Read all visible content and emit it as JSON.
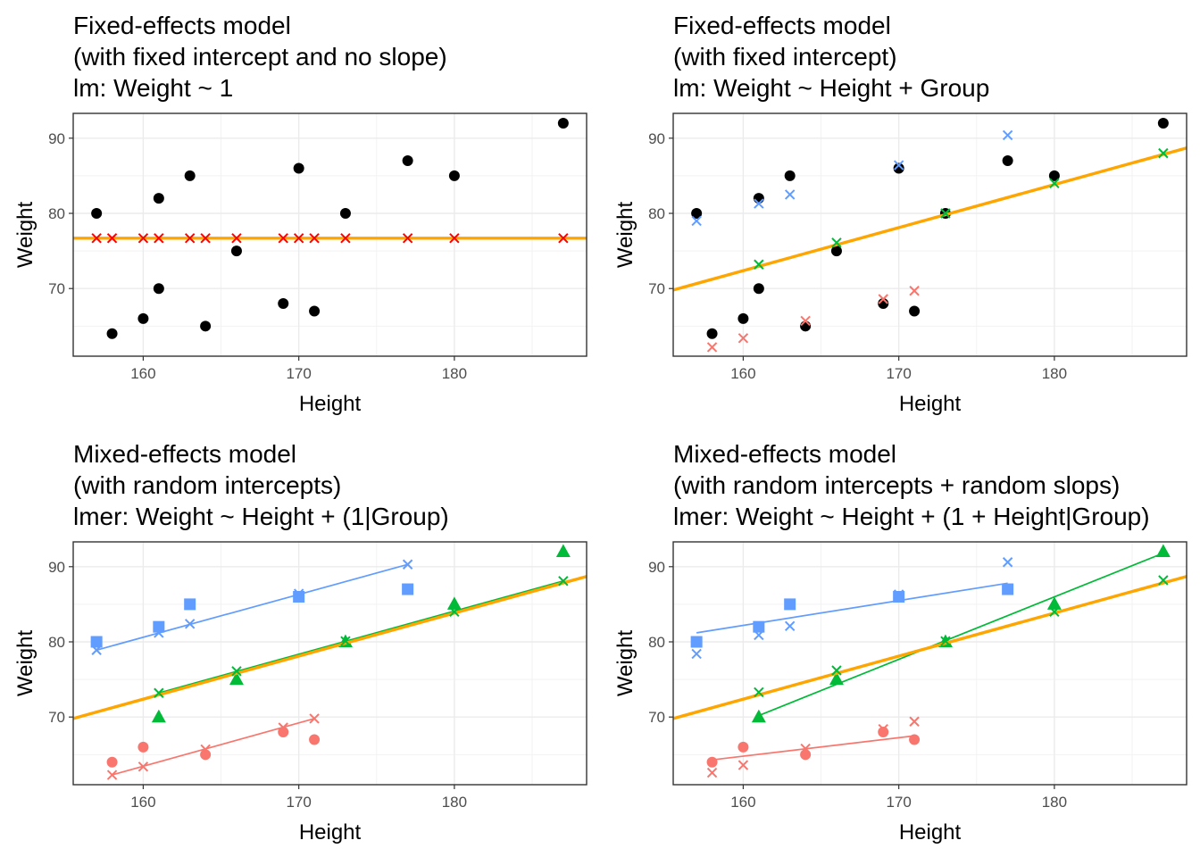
{
  "chart_data": [
    {
      "type": "scatter",
      "title_lines": [
        "Fixed-effects model",
        "(with fixed intercept and no slope)",
        "lm: Weight ~ 1"
      ],
      "xlabel": "Height",
      "ylabel": "Weight",
      "xlim": [
        155.5,
        188.5
      ],
      "ylim": [
        61.0,
        93.3
      ],
      "xticks": [
        160,
        170,
        180
      ],
      "yticks": [
        70,
        80,
        90
      ],
      "grid": true,
      "legend": "none",
      "points": [
        {
          "x": 157,
          "y": 80,
          "color": "#000000",
          "shape": "circle"
        },
        {
          "x": 158,
          "y": 64,
          "color": "#000000",
          "shape": "circle"
        },
        {
          "x": 160,
          "y": 66,
          "color": "#000000",
          "shape": "circle"
        },
        {
          "x": 161,
          "y": 82,
          "color": "#000000",
          "shape": "circle"
        },
        {
          "x": 161,
          "y": 70,
          "color": "#000000",
          "shape": "circle"
        },
        {
          "x": 163,
          "y": 85,
          "color": "#000000",
          "shape": "circle"
        },
        {
          "x": 164,
          "y": 65,
          "color": "#000000",
          "shape": "circle"
        },
        {
          "x": 166,
          "y": 75,
          "color": "#000000",
          "shape": "circle"
        },
        {
          "x": 169,
          "y": 68,
          "color": "#000000",
          "shape": "circle"
        },
        {
          "x": 170,
          "y": 86,
          "color": "#000000",
          "shape": "circle"
        },
        {
          "x": 171,
          "y": 67,
          "color": "#000000",
          "shape": "circle"
        },
        {
          "x": 173,
          "y": 80,
          "color": "#000000",
          "shape": "circle"
        },
        {
          "x": 177,
          "y": 87,
          "color": "#000000",
          "shape": "circle"
        },
        {
          "x": 180,
          "y": 85,
          "color": "#000000",
          "shape": "circle"
        },
        {
          "x": 187,
          "y": 92,
          "color": "#000000",
          "shape": "circle"
        }
      ],
      "fitted": [
        {
          "x": 157,
          "y": 76.7,
          "color": "#ff0000"
        },
        {
          "x": 158,
          "y": 76.7,
          "color": "#ff0000"
        },
        {
          "x": 160,
          "y": 76.7,
          "color": "#ff0000"
        },
        {
          "x": 161,
          "y": 76.7,
          "color": "#ff0000"
        },
        {
          "x": 163,
          "y": 76.7,
          "color": "#ff0000"
        },
        {
          "x": 164,
          "y": 76.7,
          "color": "#ff0000"
        },
        {
          "x": 166,
          "y": 76.7,
          "color": "#ff0000"
        },
        {
          "x": 169,
          "y": 76.7,
          "color": "#ff0000"
        },
        {
          "x": 170,
          "y": 76.7,
          "color": "#ff0000"
        },
        {
          "x": 171,
          "y": 76.7,
          "color": "#ff0000"
        },
        {
          "x": 173,
          "y": 76.7,
          "color": "#ff0000"
        },
        {
          "x": 177,
          "y": 76.7,
          "color": "#ff0000"
        },
        {
          "x": 180,
          "y": 76.7,
          "color": "#ff0000"
        },
        {
          "x": 187,
          "y": 76.7,
          "color": "#ff0000"
        }
      ],
      "lines": [
        {
          "points": [
            [
              155.5,
              76.7
            ],
            [
              188.5,
              76.7
            ]
          ],
          "color": "#ffa500",
          "width": "thick"
        }
      ]
    },
    {
      "type": "scatter",
      "title_lines": [
        "Fixed-effects model",
        "(with fixed intercept)",
        "lm: Weight ~ Height + Group"
      ],
      "xlabel": "Height",
      "ylabel": "Weight",
      "xlim": [
        155.5,
        188.5
      ],
      "ylim": [
        61.0,
        93.3
      ],
      "xticks": [
        160,
        170,
        180
      ],
      "yticks": [
        70,
        80,
        90
      ],
      "grid": true,
      "legend": "none",
      "points": [
        {
          "x": 157,
          "y": 80,
          "color": "#000000",
          "shape": "circle"
        },
        {
          "x": 158,
          "y": 64,
          "color": "#000000",
          "shape": "circle"
        },
        {
          "x": 160,
          "y": 66,
          "color": "#000000",
          "shape": "circle"
        },
        {
          "x": 161,
          "y": 82,
          "color": "#000000",
          "shape": "circle"
        },
        {
          "x": 161,
          "y": 70,
          "color": "#000000",
          "shape": "circle"
        },
        {
          "x": 163,
          "y": 85,
          "color": "#000000",
          "shape": "circle"
        },
        {
          "x": 164,
          "y": 65,
          "color": "#000000",
          "shape": "circle"
        },
        {
          "x": 166,
          "y": 75,
          "color": "#000000",
          "shape": "circle"
        },
        {
          "x": 169,
          "y": 68,
          "color": "#000000",
          "shape": "circle"
        },
        {
          "x": 170,
          "y": 86,
          "color": "#000000",
          "shape": "circle"
        },
        {
          "x": 171,
          "y": 67,
          "color": "#000000",
          "shape": "circle"
        },
        {
          "x": 173,
          "y": 80,
          "color": "#000000",
          "shape": "circle"
        },
        {
          "x": 177,
          "y": 87,
          "color": "#000000",
          "shape": "circle"
        },
        {
          "x": 180,
          "y": 85,
          "color": "#000000",
          "shape": "circle"
        },
        {
          "x": 187,
          "y": 92,
          "color": "#000000",
          "shape": "circle"
        }
      ],
      "fitted": [
        {
          "x": 157,
          "y": 79.0,
          "color": "#619cff"
        },
        {
          "x": 161,
          "y": 81.3,
          "color": "#619cff"
        },
        {
          "x": 163,
          "y": 82.5,
          "color": "#619cff"
        },
        {
          "x": 170,
          "y": 86.4,
          "color": "#619cff"
        },
        {
          "x": 177,
          "y": 90.4,
          "color": "#619cff"
        },
        {
          "x": 161,
          "y": 73.2,
          "color": "#00ba38"
        },
        {
          "x": 166,
          "y": 76.1,
          "color": "#00ba38"
        },
        {
          "x": 173,
          "y": 80.0,
          "color": "#00ba38"
        },
        {
          "x": 180,
          "y": 84.0,
          "color": "#00ba38"
        },
        {
          "x": 187,
          "y": 88.0,
          "color": "#00ba38"
        },
        {
          "x": 158,
          "y": 62.2,
          "color": "#f8766d"
        },
        {
          "x": 160,
          "y": 63.4,
          "color": "#f8766d"
        },
        {
          "x": 164,
          "y": 65.7,
          "color": "#f8766d"
        },
        {
          "x": 169,
          "y": 68.6,
          "color": "#f8766d"
        },
        {
          "x": 171,
          "y": 69.7,
          "color": "#f8766d"
        }
      ],
      "lines": [
        {
          "points": [
            [
              155.5,
              69.8
            ],
            [
              188.5,
              88.7
            ]
          ],
          "color": "#ffa500",
          "width": "thick"
        }
      ]
    },
    {
      "type": "scatter",
      "title_lines": [
        "Mixed-effects model",
        " (with random intercepts)",
        "lmer: Weight ~ Height + (1|Group)"
      ],
      "xlabel": "Height",
      "ylabel": "Weight",
      "xlim": [
        155.5,
        188.5
      ],
      "ylim": [
        61.0,
        93.3
      ],
      "xticks": [
        160,
        170,
        180
      ],
      "yticks": [
        70,
        80,
        90
      ],
      "grid": true,
      "legend": "none",
      "points": [
        {
          "x": 157,
          "y": 80,
          "color": "#619cff",
          "shape": "square"
        },
        {
          "x": 161,
          "y": 82,
          "color": "#619cff",
          "shape": "square"
        },
        {
          "x": 163,
          "y": 85,
          "color": "#619cff",
          "shape": "square"
        },
        {
          "x": 170,
          "y": 86,
          "color": "#619cff",
          "shape": "square"
        },
        {
          "x": 177,
          "y": 87,
          "color": "#619cff",
          "shape": "square"
        },
        {
          "x": 161,
          "y": 70,
          "color": "#00ba38",
          "shape": "triangle"
        },
        {
          "x": 166,
          "y": 75,
          "color": "#00ba38",
          "shape": "triangle"
        },
        {
          "x": 173,
          "y": 80,
          "color": "#00ba38",
          "shape": "triangle"
        },
        {
          "x": 180,
          "y": 85,
          "color": "#00ba38",
          "shape": "triangle"
        },
        {
          "x": 187,
          "y": 92,
          "color": "#00ba38",
          "shape": "triangle"
        },
        {
          "x": 158,
          "y": 64,
          "color": "#f8766d",
          "shape": "circle"
        },
        {
          "x": 160,
          "y": 66,
          "color": "#f8766d",
          "shape": "circle"
        },
        {
          "x": 164,
          "y": 65,
          "color": "#f8766d",
          "shape": "circle"
        },
        {
          "x": 169,
          "y": 68,
          "color": "#f8766d",
          "shape": "circle"
        },
        {
          "x": 171,
          "y": 67,
          "color": "#f8766d",
          "shape": "circle"
        }
      ],
      "fitted": [
        {
          "x": 157,
          "y": 78.9,
          "color": "#619cff"
        },
        {
          "x": 161,
          "y": 81.2,
          "color": "#619cff"
        },
        {
          "x": 163,
          "y": 82.4,
          "color": "#619cff"
        },
        {
          "x": 170,
          "y": 86.4,
          "color": "#619cff"
        },
        {
          "x": 177,
          "y": 90.3,
          "color": "#619cff"
        },
        {
          "x": 161,
          "y": 73.2,
          "color": "#00ba38"
        },
        {
          "x": 166,
          "y": 76.1,
          "color": "#00ba38"
        },
        {
          "x": 173,
          "y": 80.1,
          "color": "#00ba38"
        },
        {
          "x": 180,
          "y": 84.0,
          "color": "#00ba38"
        },
        {
          "x": 187,
          "y": 88.1,
          "color": "#00ba38"
        },
        {
          "x": 158,
          "y": 62.3,
          "color": "#f8766d"
        },
        {
          "x": 160,
          "y": 63.4,
          "color": "#f8766d"
        },
        {
          "x": 164,
          "y": 65.7,
          "color": "#f8766d"
        },
        {
          "x": 169,
          "y": 68.6,
          "color": "#f8766d"
        },
        {
          "x": 171,
          "y": 69.8,
          "color": "#f8766d"
        }
      ],
      "lines": [
        {
          "points": [
            [
              157,
              78.9
            ],
            [
              177,
              90.3
            ]
          ],
          "color": "#619cff",
          "width": "thin"
        },
        {
          "points": [
            [
              161,
              73.2
            ],
            [
              187,
              88.1
            ]
          ],
          "color": "#00ba38",
          "width": "thin"
        },
        {
          "points": [
            [
              158,
              62.3
            ],
            [
              171,
              69.8
            ]
          ],
          "color": "#f8766d",
          "width": "thin"
        },
        {
          "points": [
            [
              155.5,
              69.8
            ],
            [
              188.5,
              88.7
            ]
          ],
          "color": "#ffa500",
          "width": "thick"
        }
      ]
    },
    {
      "type": "scatter",
      "title_lines": [
        "Mixed-effects model",
        "(with random intercepts + random slops)",
        "lmer: Weight ~ Height + (1 + Height|Group)"
      ],
      "xlabel": "Height",
      "ylabel": "Weight",
      "xlim": [
        155.5,
        188.5
      ],
      "ylim": [
        61.0,
        93.3
      ],
      "xticks": [
        160,
        170,
        180
      ],
      "yticks": [
        70,
        80,
        90
      ],
      "grid": true,
      "legend": "none",
      "points": [
        {
          "x": 157,
          "y": 80,
          "color": "#619cff",
          "shape": "square"
        },
        {
          "x": 161,
          "y": 82,
          "color": "#619cff",
          "shape": "square"
        },
        {
          "x": 163,
          "y": 85,
          "color": "#619cff",
          "shape": "square"
        },
        {
          "x": 170,
          "y": 86,
          "color": "#619cff",
          "shape": "square"
        },
        {
          "x": 177,
          "y": 87,
          "color": "#619cff",
          "shape": "square"
        },
        {
          "x": 161,
          "y": 70,
          "color": "#00ba38",
          "shape": "triangle"
        },
        {
          "x": 166,
          "y": 75,
          "color": "#00ba38",
          "shape": "triangle"
        },
        {
          "x": 173,
          "y": 80,
          "color": "#00ba38",
          "shape": "triangle"
        },
        {
          "x": 180,
          "y": 85,
          "color": "#00ba38",
          "shape": "triangle"
        },
        {
          "x": 187,
          "y": 92,
          "color": "#00ba38",
          "shape": "triangle"
        },
        {
          "x": 158,
          "y": 64,
          "color": "#f8766d",
          "shape": "circle"
        },
        {
          "x": 160,
          "y": 66,
          "color": "#f8766d",
          "shape": "circle"
        },
        {
          "x": 164,
          "y": 65,
          "color": "#f8766d",
          "shape": "circle"
        },
        {
          "x": 169,
          "y": 68,
          "color": "#f8766d",
          "shape": "circle"
        },
        {
          "x": 171,
          "y": 67,
          "color": "#f8766d",
          "shape": "circle"
        }
      ],
      "fitted": [
        {
          "x": 157,
          "y": 78.4,
          "color": "#619cff"
        },
        {
          "x": 161,
          "y": 80.9,
          "color": "#619cff"
        },
        {
          "x": 163,
          "y": 82.1,
          "color": "#619cff"
        },
        {
          "x": 170,
          "y": 86.3,
          "color": "#619cff"
        },
        {
          "x": 177,
          "y": 90.6,
          "color": "#619cff"
        },
        {
          "x": 161,
          "y": 73.3,
          "color": "#00ba38"
        },
        {
          "x": 166,
          "y": 76.2,
          "color": "#00ba38"
        },
        {
          "x": 173,
          "y": 80.1,
          "color": "#00ba38"
        },
        {
          "x": 180,
          "y": 84.0,
          "color": "#00ba38"
        },
        {
          "x": 187,
          "y": 88.2,
          "color": "#00ba38"
        },
        {
          "x": 158,
          "y": 62.6,
          "color": "#f8766d"
        },
        {
          "x": 160,
          "y": 63.6,
          "color": "#f8766d"
        },
        {
          "x": 164,
          "y": 65.8,
          "color": "#f8766d"
        },
        {
          "x": 169,
          "y": 68.4,
          "color": "#f8766d"
        },
        {
          "x": 171,
          "y": 69.4,
          "color": "#f8766d"
        }
      ],
      "lines": [
        {
          "points": [
            [
              157,
              81.2
            ],
            [
              177,
              87.8
            ]
          ],
          "color": "#619cff",
          "width": "thin"
        },
        {
          "points": [
            [
              161,
              70.2
            ],
            [
              187,
              91.8
            ]
          ],
          "color": "#00ba38",
          "width": "thin"
        },
        {
          "points": [
            [
              158,
              64.3
            ],
            [
              171,
              67.5
            ]
          ],
          "color": "#f8766d",
          "width": "thin"
        },
        {
          "points": [
            [
              155.5,
              69.8
            ],
            [
              188.5,
              88.7
            ]
          ],
          "color": "#ffa500",
          "width": "thick"
        }
      ]
    }
  ]
}
